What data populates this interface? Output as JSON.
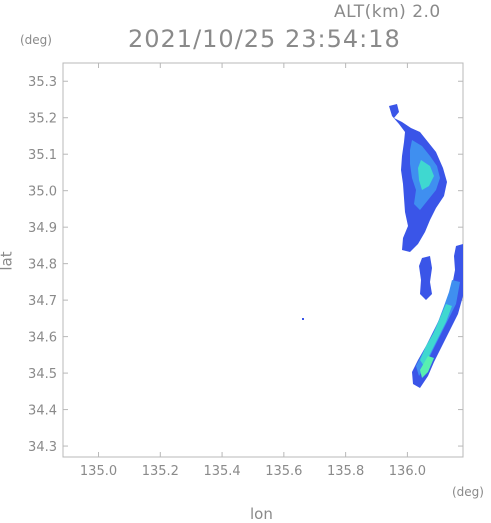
{
  "header": {
    "altitude_label": "ALT(km) 2.0",
    "timestamp": "2021/10/25 23:54:18"
  },
  "axes": {
    "lat_unit": "(deg)",
    "lon_unit": "(deg)",
    "lat_label": "lat",
    "lon_label": "lon",
    "lat_ticks": [
      "35.3",
      "35.2",
      "35.1",
      "35.0",
      "34.9",
      "34.8",
      "34.7",
      "34.6",
      "34.5",
      "34.4",
      "34.3"
    ],
    "lon_ticks": [
      "135.0",
      "135.2",
      "135.4",
      "135.6",
      "135.8",
      "136.0"
    ],
    "lat_tick_values": [
      35.3,
      35.2,
      35.1,
      35.0,
      34.9,
      34.8,
      34.7,
      34.6,
      34.5,
      34.4,
      34.3
    ],
    "lon_tick_values": [
      135.0,
      135.2,
      135.4,
      135.6,
      135.8,
      136.0
    ],
    "lon_range": [
      134.885,
      136.18
    ],
    "lat_range": [
      34.27,
      35.35
    ]
  },
  "colors": {
    "axis": "#b8b8b8",
    "text": "#8a8a8a",
    "echo_low": "#3a55e8",
    "echo_mid": "#3f8ff0",
    "echo_high": "#3fd8d0",
    "echo_peak": "#58f0b0"
  }
}
